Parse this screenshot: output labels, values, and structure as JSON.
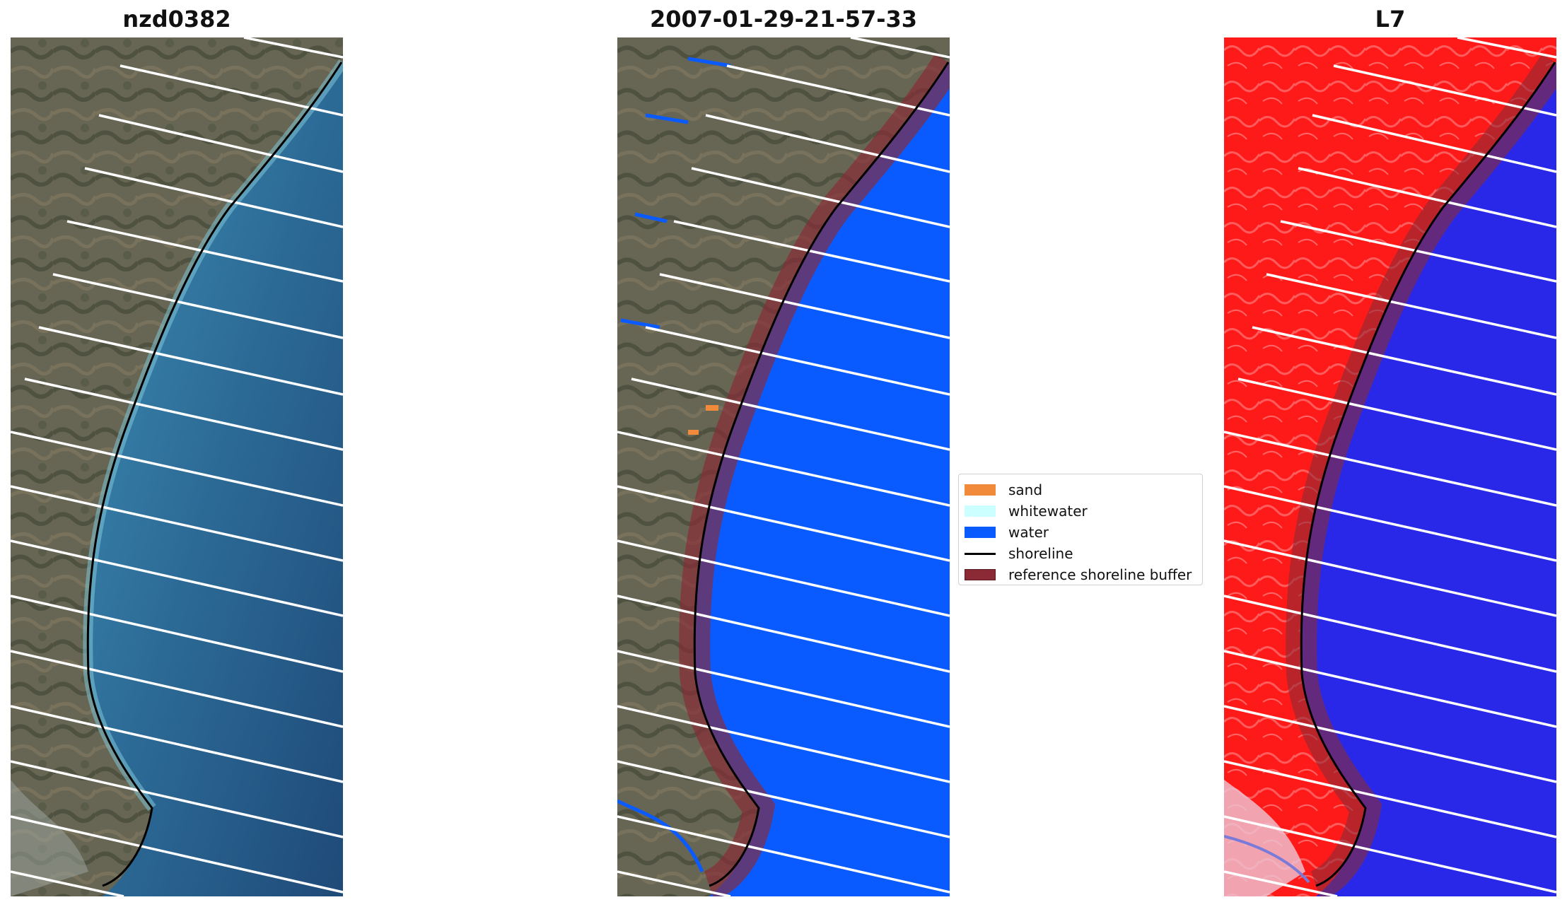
{
  "panels": [
    {
      "title": "nzd0382",
      "kind": "rgb"
    },
    {
      "title": "2007-01-29-21-57-33",
      "kind": "classified"
    },
    {
      "title": "L7",
      "kind": "mndwi"
    }
  ],
  "legend": {
    "items": [
      {
        "label": "sand",
        "color": "#f28a3c",
        "type": "patch"
      },
      {
        "label": "whitewater",
        "color": "#ccffff",
        "type": "patch"
      },
      {
        "label": "water",
        "color": "#0a5bff",
        "type": "patch"
      },
      {
        "label": "shoreline",
        "color": "#000000",
        "type": "line"
      },
      {
        "label": "reference shoreline buffer",
        "color": "#8b2a35",
        "type": "patch"
      }
    ]
  },
  "colors": {
    "land_rgb": "#5f5e4c",
    "sea_rgb": "#2f6f98",
    "water_class": "#0a5bff",
    "buffer": "#8b2a35",
    "land_index": "#ff1a1a",
    "water_index": "#2a28e8",
    "scanline_gap": "#ffffff",
    "shoreline": "#000000"
  }
}
